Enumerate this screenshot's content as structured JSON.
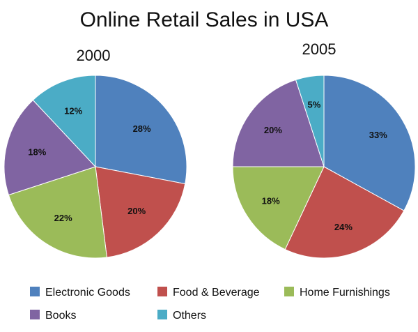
{
  "chart_data": {
    "type": "pie",
    "title": "Online Retail Sales in USA",
    "categories": [
      "Electronic Goods",
      "Food & Beverage",
      "Home Furnishings",
      "Books",
      "Others"
    ],
    "colors": [
      "#4f81bd",
      "#c0504d",
      "#9bbb59",
      "#8064a2",
      "#4bacc6"
    ],
    "charts": [
      {
        "subtitle": "2000",
        "values": [
          28,
          20,
          22,
          18,
          12
        ],
        "labels": [
          "28%",
          "20%",
          "22%",
          "18%",
          "12%"
        ]
      },
      {
        "subtitle": "2005",
        "values": [
          33,
          24,
          18,
          20,
          5
        ],
        "labels": [
          "33%",
          "24%",
          "18%",
          "20%",
          "5%"
        ]
      }
    ],
    "legend_position": "bottom"
  }
}
